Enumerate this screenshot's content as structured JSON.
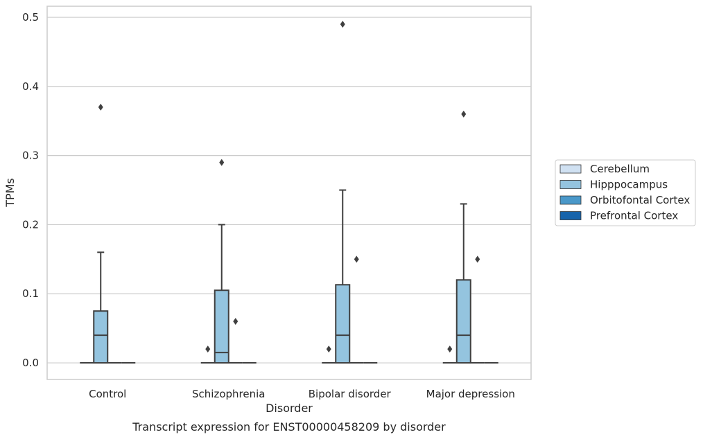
{
  "chart_data": {
    "type": "box",
    "caption": "Transcript expression for ENST00000458209 by disorder",
    "xlabel": "Disorder",
    "ylabel": "TPMs",
    "ylim": [
      -0.024,
      0.516
    ],
    "yticks": [
      0.0,
      0.1,
      0.2,
      0.3,
      0.4,
      0.5
    ],
    "ytick_labels": [
      "0.0",
      "0.1",
      "0.2",
      "0.3",
      "0.4",
      "0.5"
    ],
    "grid": "horizontal",
    "legend_position": "right",
    "categories": [
      "Control",
      "Schizophrenia",
      "Bipolar disorder",
      "Major depression"
    ],
    "series": [
      {
        "name": "Cerebellum",
        "color": "#d0e1f2",
        "boxes": [
          {
            "category": "Control",
            "q1": 0,
            "median": 0,
            "q3": 0,
            "whisker_low": 0,
            "whisker_high": 0,
            "outliers": []
          },
          {
            "category": "Schizophrenia",
            "q1": 0,
            "median": 0,
            "q3": 0,
            "whisker_low": 0,
            "whisker_high": 0,
            "outliers": [
              0.02
            ]
          },
          {
            "category": "Bipolar disorder",
            "q1": 0,
            "median": 0,
            "q3": 0,
            "whisker_low": 0,
            "whisker_high": 0,
            "outliers": [
              0.02
            ]
          },
          {
            "category": "Major depression",
            "q1": 0,
            "median": 0,
            "q3": 0,
            "whisker_low": 0,
            "whisker_high": 0,
            "outliers": [
              0.02
            ]
          }
        ]
      },
      {
        "name": "Hipppocampus",
        "color": "#94c4df",
        "boxes": [
          {
            "category": "Control",
            "q1": 0,
            "median": 0.04,
            "q3": 0.075,
            "whisker_low": 0,
            "whisker_high": 0.16,
            "outliers": [
              0.37
            ]
          },
          {
            "category": "Schizophrenia",
            "q1": 0,
            "median": 0.015,
            "q3": 0.105,
            "whisker_low": 0,
            "whisker_high": 0.2,
            "outliers": [
              0.29
            ]
          },
          {
            "category": "Bipolar disorder",
            "q1": 0,
            "median": 0.04,
            "q3": 0.113,
            "whisker_low": 0,
            "whisker_high": 0.25,
            "outliers": [
              0.49
            ]
          },
          {
            "category": "Major depression",
            "q1": 0,
            "median": 0.04,
            "q3": 0.12,
            "whisker_low": 0,
            "whisker_high": 0.23,
            "outliers": [
              0.36
            ]
          }
        ]
      },
      {
        "name": "Orbitofontal Cortex",
        "color": "#4a98c9",
        "boxes": [
          {
            "category": "Control",
            "q1": 0,
            "median": 0,
            "q3": 0,
            "whisker_low": 0,
            "whisker_high": 0,
            "outliers": []
          },
          {
            "category": "Schizophrenia",
            "q1": 0,
            "median": 0,
            "q3": 0,
            "whisker_low": 0,
            "whisker_high": 0,
            "outliers": [
              0.06
            ]
          },
          {
            "category": "Bipolar disorder",
            "q1": 0,
            "median": 0,
            "q3": 0,
            "whisker_low": 0,
            "whisker_high": 0,
            "outliers": [
              0.15
            ]
          },
          {
            "category": "Major depression",
            "q1": 0,
            "median": 0,
            "q3": 0,
            "whisker_low": 0,
            "whisker_high": 0,
            "outliers": [
              0.15
            ]
          }
        ]
      },
      {
        "name": "Prefrontal Cortex",
        "color": "#1764ab",
        "boxes": [
          {
            "category": "Control",
            "q1": 0,
            "median": 0,
            "q3": 0,
            "whisker_low": 0,
            "whisker_high": 0,
            "outliers": []
          },
          {
            "category": "Schizophrenia",
            "q1": 0,
            "median": 0,
            "q3": 0,
            "whisker_low": 0,
            "whisker_high": 0,
            "outliers": []
          },
          {
            "category": "Bipolar disorder",
            "q1": 0,
            "median": 0,
            "q3": 0,
            "whisker_low": 0,
            "whisker_high": 0,
            "outliers": []
          },
          {
            "category": "Major depression",
            "q1": 0,
            "median": 0,
            "q3": 0,
            "whisker_low": 0,
            "whisker_high": 0,
            "outliers": []
          }
        ]
      }
    ]
  }
}
